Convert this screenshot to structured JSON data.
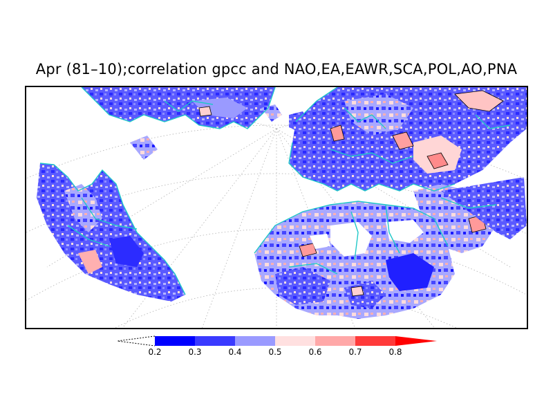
{
  "title": "Apr (81–10);correlation gpcc and NAO,EA,EAWR,SCA,POL,AO,PNA",
  "colorbar": {
    "ticks": [
      "0.2",
      "0.3",
      "0.4",
      "0.5",
      "0.6",
      "0.7",
      "0.8"
    ],
    "colors": [
      "#0000ff",
      "#3a3aff",
      "#9a9aff",
      "#ffe0e0",
      "#ffa8a8",
      "#ff3a3a",
      "#ff0000"
    ]
  },
  "map": {
    "projection": "polar-conic",
    "coastline_color": "#20c8c8",
    "contour_color": "#000000"
  }
}
